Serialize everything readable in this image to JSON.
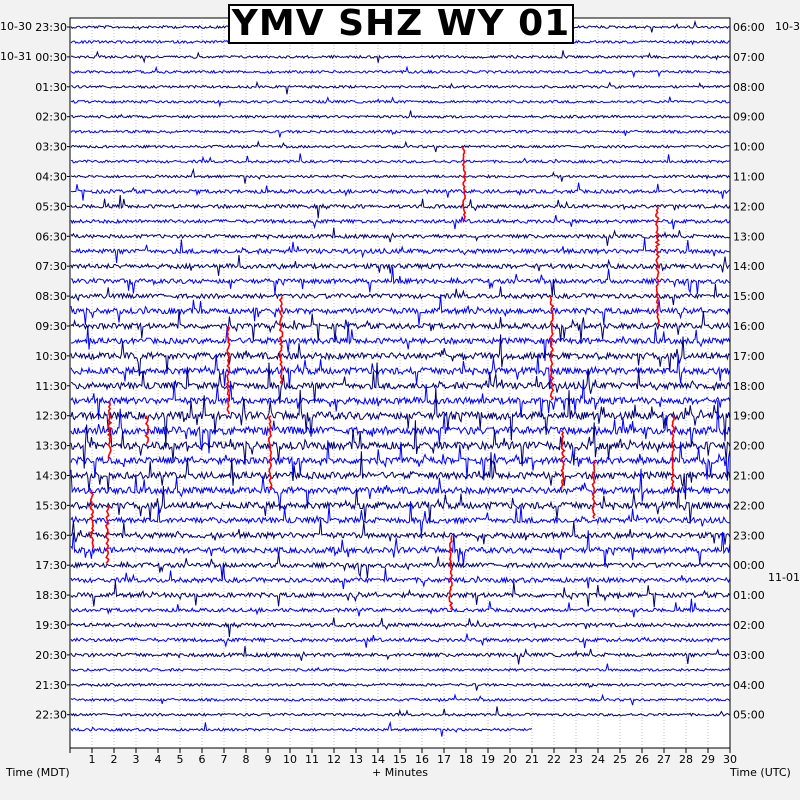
{
  "title": "YMV SHZ WY 01",
  "left_dates": [
    "10-30",
    "10-31"
  ],
  "right_dates": [
    "10-3",
    "11-01"
  ],
  "xlabel_left": "Time (MDT)",
  "xlabel_center": "+ Minutes",
  "xlabel_right": "Time (UTC)",
  "colors": {
    "trace_dark": "#00006e",
    "trace_blue": "#0000ff",
    "clip": "#ff0000",
    "background": "#f2f2f2",
    "plot_bg": "#ffffff"
  },
  "chart_data": {
    "type": "line",
    "description_type": "helicorder",
    "x_ticks": [
      "1",
      "2",
      "3",
      "4",
      "5",
      "6",
      "7",
      "8",
      "9",
      "10",
      "11",
      "12",
      "13",
      "14",
      "15",
      "16",
      "17",
      "18",
      "19",
      "20",
      "21",
      "22",
      "23",
      "24",
      "25",
      "26",
      "27",
      "28",
      "29",
      "30"
    ],
    "xlim": [
      0,
      30
    ],
    "left_labels": [
      "23:30",
      "00:30",
      "01:30",
      "02:30",
      "03:30",
      "04:30",
      "05:30",
      "06:30",
      "07:30",
      "08:30",
      "09:30",
      "10:30",
      "11:30",
      "12:30",
      "13:30",
      "14:30",
      "15:30",
      "16:30",
      "17:30",
      "18:30",
      "19:30",
      "20:30",
      "21:30",
      "22:30"
    ],
    "right_labels": [
      "06:00",
      "07:00",
      "08:00",
      "09:00",
      "10:00",
      "11:00",
      "12:00",
      "13:00",
      "14:00",
      "15:00",
      "16:00",
      "17:00",
      "18:00",
      "19:00",
      "20:00",
      "21:00",
      "22:00",
      "23:00",
      "00:00",
      "01:00",
      "02:00",
      "03:00",
      "04:00",
      "05:00"
    ],
    "rows": 48,
    "rows_per_hour": 2,
    "last_row_extent_minutes": 21,
    "activity_by_row": [
      1,
      1,
      1,
      1,
      1,
      1,
      1,
      1,
      1,
      1,
      1,
      2,
      2,
      2,
      2,
      3,
      3,
      3,
      3,
      4,
      4,
      4,
      5,
      5,
      5,
      5,
      6,
      6,
      6,
      5,
      5,
      5,
      5,
      4,
      4,
      4,
      3,
      3,
      3,
      2,
      2,
      2,
      2,
      1,
      1,
      1,
      1,
      1
    ],
    "clipped_events": [
      {
        "minute": 1.8,
        "row_start": 25,
        "row_end": 29
      },
      {
        "minute": 3.5,
        "row_start": 26,
        "row_end": 28
      },
      {
        "minute": 1.0,
        "row_start": 31,
        "row_end": 35
      },
      {
        "minute": 1.7,
        "row_start": 32,
        "row_end": 36
      },
      {
        "minute": 7.2,
        "row_start": 20,
        "row_end": 26
      },
      {
        "minute": 9.6,
        "row_start": 18,
        "row_end": 24
      },
      {
        "minute": 9.1,
        "row_start": 26,
        "row_end": 31
      },
      {
        "minute": 17.3,
        "row_start": 34,
        "row_end": 39
      },
      {
        "minute": 17.9,
        "row_start": 8,
        "row_end": 13
      },
      {
        "minute": 21.9,
        "row_start": 18,
        "row_end": 25
      },
      {
        "minute": 22.4,
        "row_start": 27,
        "row_end": 31
      },
      {
        "minute": 23.8,
        "row_start": 29,
        "row_end": 33
      },
      {
        "minute": 26.7,
        "row_start": 12,
        "row_end": 20
      },
      {
        "minute": 27.4,
        "row_start": 26,
        "row_end": 31
      }
    ]
  }
}
